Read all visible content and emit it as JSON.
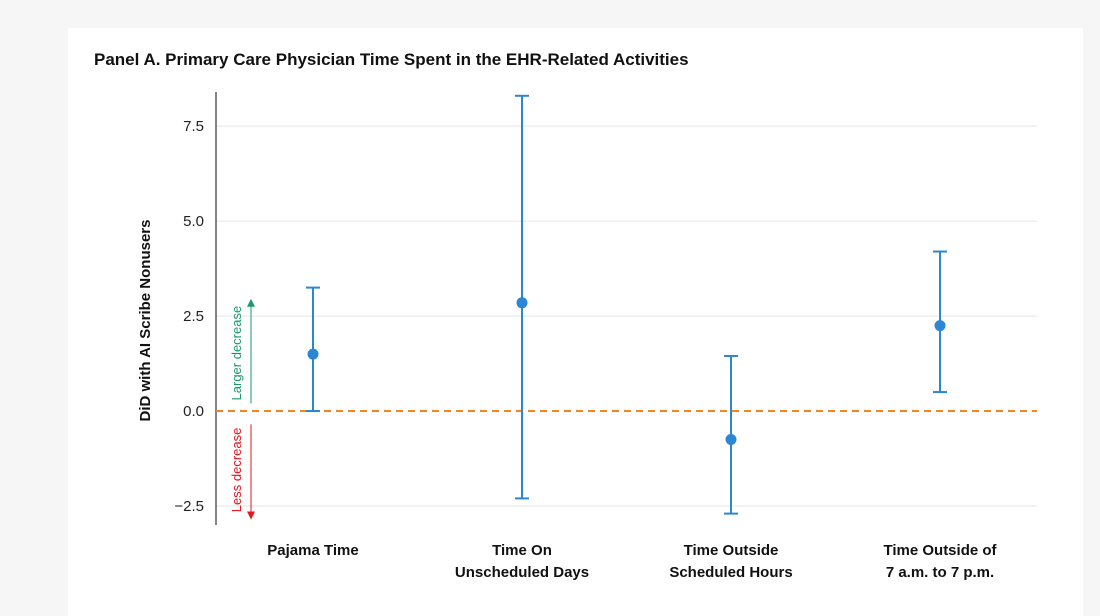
{
  "chart_data": {
    "type": "errorbar",
    "title": "Panel A. Primary Care Physician Time Spent in the EHR-Related Activities",
    "xlabel": "",
    "ylabel": "DiD with AI Scribe Nonusers",
    "ylim": [
      -3.0,
      8.4
    ],
    "yticks": [
      -2.5,
      0.0,
      2.5,
      5.0,
      7.5
    ],
    "ytick_labels": [
      "−2.5",
      "0.0",
      "2.5",
      "5.0",
      "7.5"
    ],
    "reference_line": {
      "y": 0.0,
      "style": "dashed",
      "color": "#f28522"
    },
    "categories": [
      [
        "Pajama Time"
      ],
      [
        "Time On",
        "Unscheduled Days"
      ],
      [
        "Time Outside",
        "Scheduled Hours"
      ],
      [
        "Time Outside of",
        "7 a.m. to 7 p.m."
      ]
    ],
    "points": [
      {
        "estimate": 1.5,
        "lower": 0.0,
        "upper": 3.25
      },
      {
        "estimate": 2.85,
        "lower": -2.3,
        "upper": 8.3
      },
      {
        "estimate": -0.75,
        "lower": -2.7,
        "upper": 1.45
      },
      {
        "estimate": 2.25,
        "lower": 0.5,
        "upper": 4.2
      }
    ],
    "annotations": {
      "up": {
        "text": "Larger decrease",
        "color": "#1a9a6b"
      },
      "down": {
        "text": "Less decrease",
        "color": "#e8141b"
      }
    },
    "grid": "horizontal",
    "colors": {
      "series": "#2b86d3",
      "grid": "#e6e6e6",
      "axis": "#333333"
    }
  }
}
